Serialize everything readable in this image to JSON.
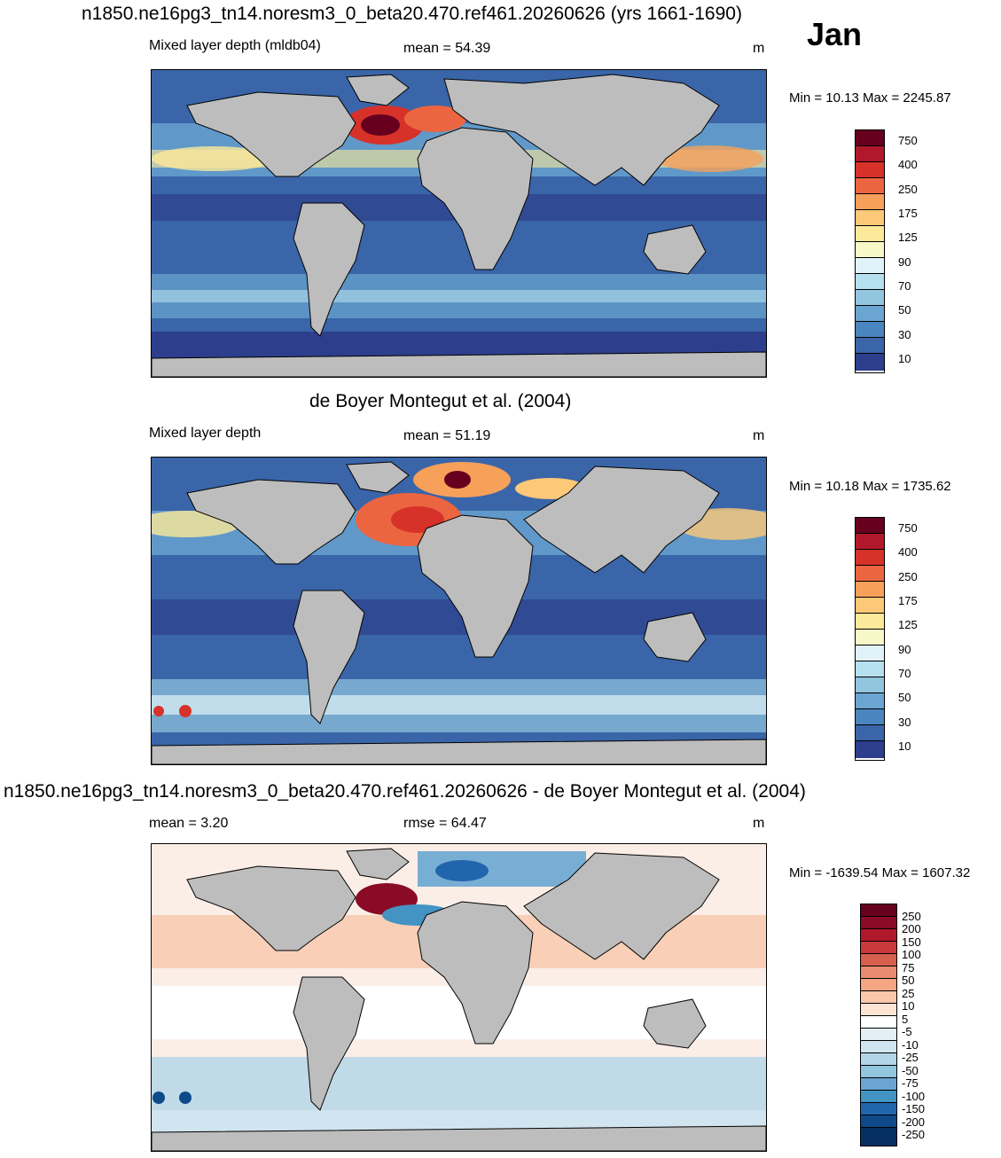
{
  "header": {
    "title": "n1850.ne16pg3_tn14.noresm3_0_beta20.470.ref461.20260626 (yrs 1661-1690)",
    "month": "Jan"
  },
  "panel1": {
    "left": "Mixed layer depth (mldb04)",
    "stat": "mean =  54.39",
    "units": "m",
    "minmax": "Min =  10.13 Max = 2245.87"
  },
  "panel2": {
    "title": "de Boyer Montegut et al. (2004)",
    "left": "Mixed layer depth",
    "stat": "mean =  51.19",
    "units": "m",
    "minmax": "Min =  10.18 Max = 1735.62"
  },
  "panel3": {
    "title": "n1850.ne16pg3_tn14.noresm3_0_beta20.470.ref461.20260626 - de Boyer Montegut et al. (2004)",
    "left": "mean =   3.20",
    "stat": "rmse =  64.47",
    "units": "m",
    "minmax": "Min = -1639.54 Max = 1607.32"
  },
  "colorbar_mld": {
    "labels": [
      "750",
      "400",
      "250",
      "175",
      "125",
      "90",
      "70",
      "50",
      "30",
      "10"
    ],
    "colors": [
      "#67001f",
      "#b2182b",
      "#d6322a",
      "#ec6541",
      "#f6a05a",
      "#fdc877",
      "#fde99a",
      "#f7f7c8",
      "#e1f3f8",
      "#b7e0ee",
      "#92c5de",
      "#6aa6d1",
      "#4a85bf",
      "#3a65a8",
      "#2d3e8c"
    ]
  },
  "colorbar_diff": {
    "labels": [
      "250",
      "200",
      "150",
      "100",
      "75",
      "50",
      "25",
      "10",
      "5",
      "-5",
      "-10",
      "-25",
      "-50",
      "-75",
      "-100",
      "-150",
      "-200",
      "-250"
    ],
    "colors": [
      "#67001f",
      "#8a0b25",
      "#b2182b",
      "#c83a3b",
      "#d6604d",
      "#e88b6e",
      "#f4a582",
      "#f9c7ac",
      "#fde3d4",
      "#ffffff",
      "#e4eef5",
      "#d1e5f0",
      "#b3d5e8",
      "#92c5de",
      "#6aa6d1",
      "#4393c3",
      "#2166ac",
      "#0d4a89",
      "#053061"
    ]
  }
}
